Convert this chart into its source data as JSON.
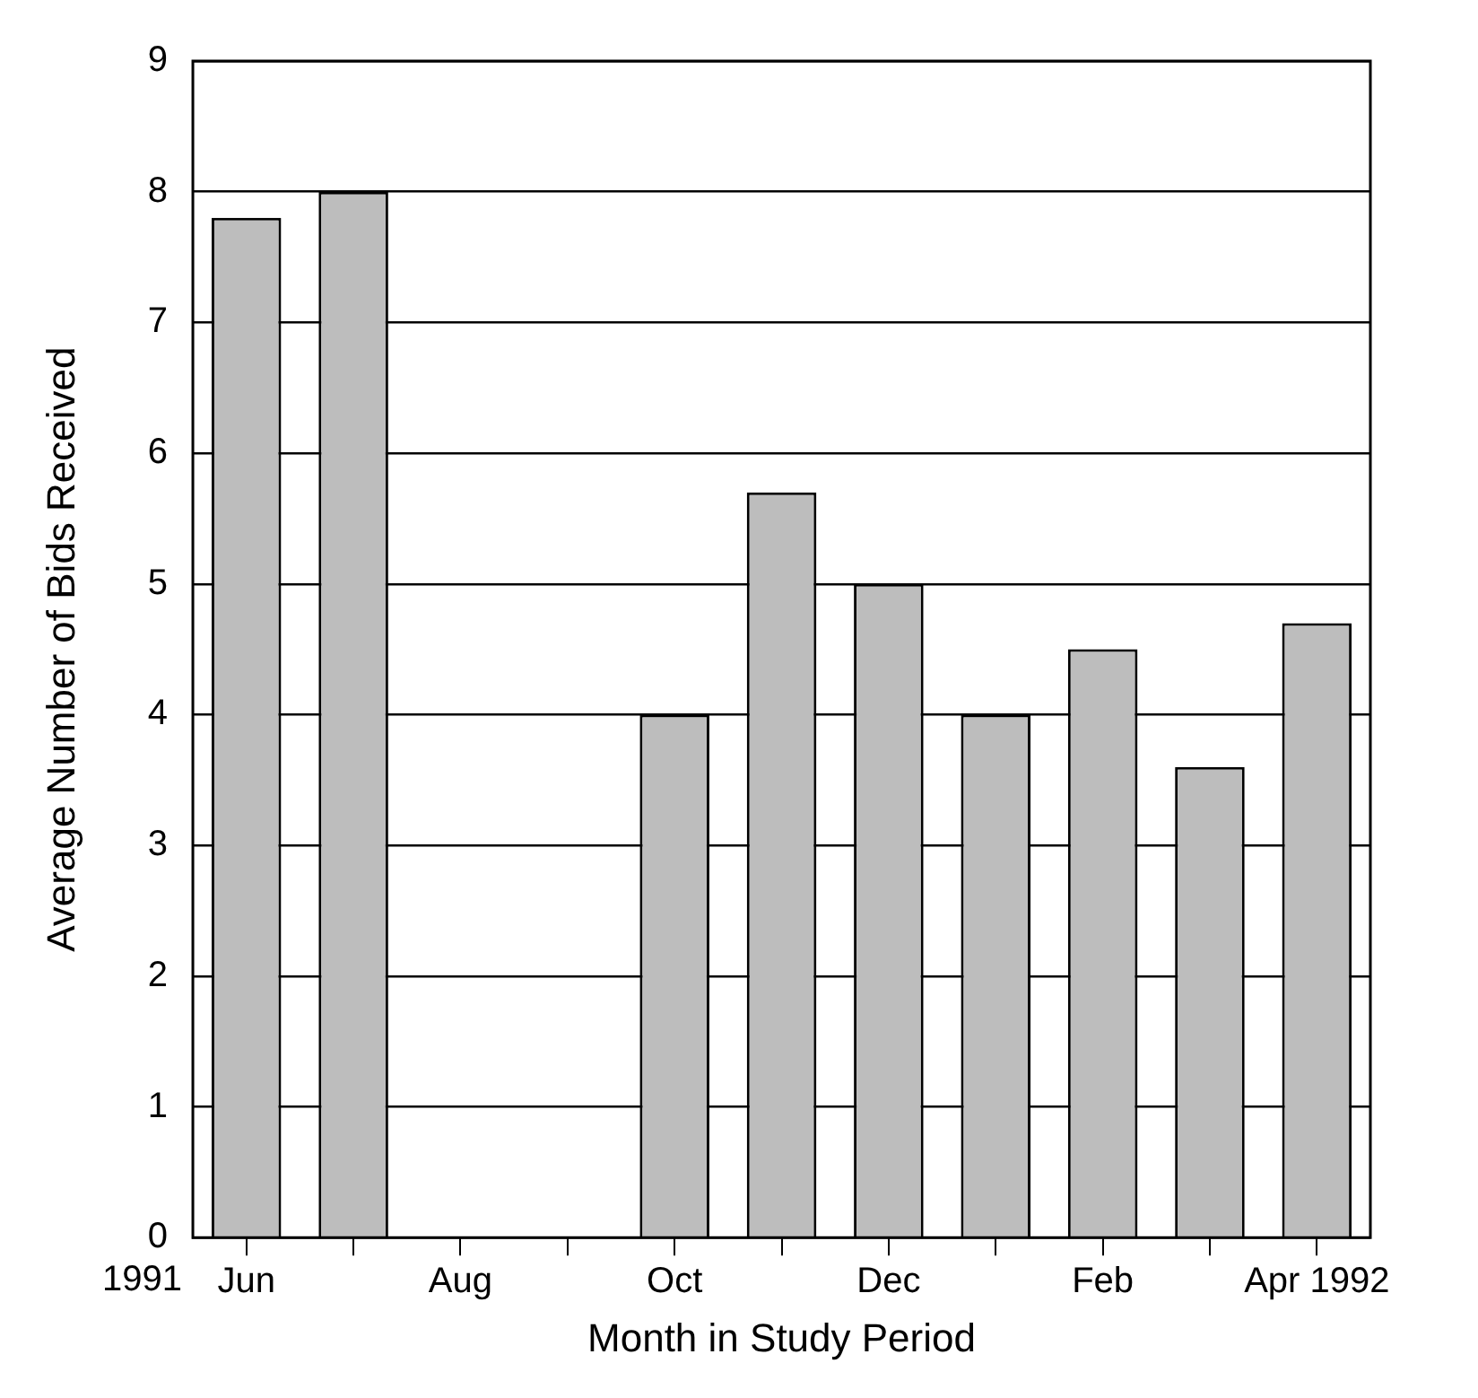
{
  "chart_data": {
    "type": "bar",
    "xlabel": "Month in Study Period",
    "ylabel": "Average Number of Bids Received",
    "categories": [
      "Jun",
      null,
      "Aug",
      null,
      "Oct",
      null,
      "Dec",
      null,
      "Feb",
      null,
      "Apr 1992"
    ],
    "values": [
      7.8,
      8.0,
      null,
      null,
      4.0,
      5.7,
      5.0,
      4.0,
      4.5,
      3.6,
      4.7
    ],
    "color": "#bdbdbd",
    "ylim": [
      0,
      9
    ],
    "yticks": [
      0,
      1,
      2,
      3,
      4,
      5,
      6,
      7,
      8,
      9
    ],
    "grid": "y",
    "annotations": [
      "1991"
    ]
  }
}
